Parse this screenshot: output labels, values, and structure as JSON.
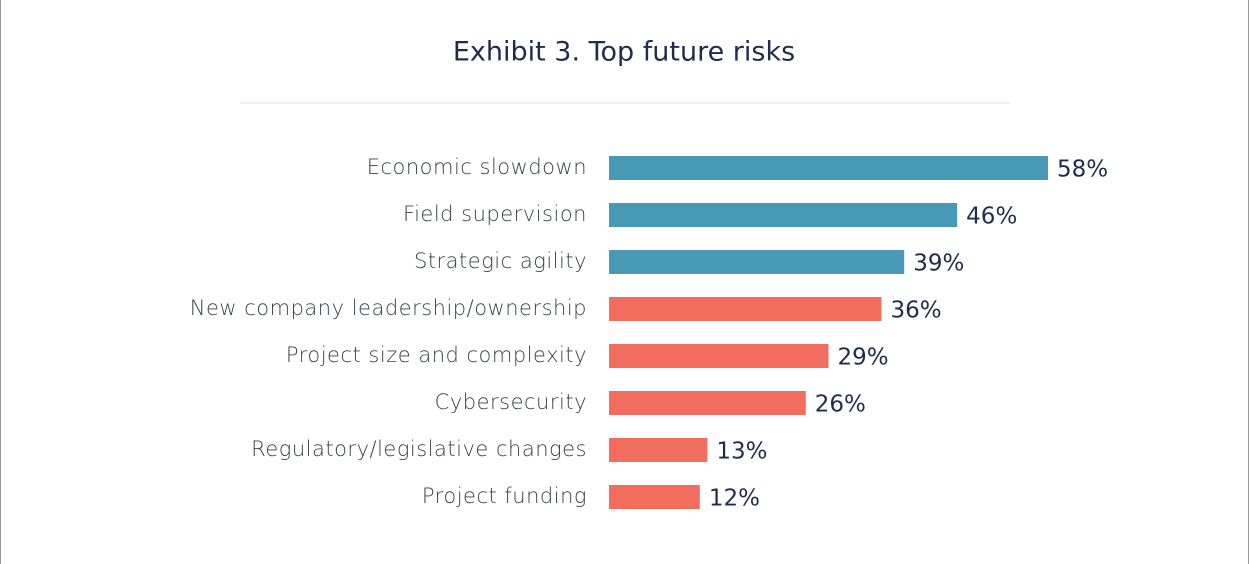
{
  "chart_data": {
    "type": "hbar",
    "title": "Exhibit 3. Top future risks",
    "categories": [
      "Economic slowdown",
      "Field supervision",
      "Strategic agility",
      "New company leadership/ownership",
      "Project size and complexity",
      "Cybersecurity",
      "Regulatory/legislative changes",
      "Project funding"
    ],
    "values": [
      58,
      46,
      39,
      36,
      29,
      26,
      13,
      12
    ],
    "value_labels": [
      "58%",
      "46%",
      "39%",
      "36%",
      "29%",
      "26%",
      "13%",
      "12%"
    ],
    "colors": [
      "#4799b5",
      "#4799b5",
      "#4799b5",
      "#f26d5e",
      "#f26d5e",
      "#f26d5e",
      "#f26d5e",
      "#f26d5e"
    ]
  }
}
